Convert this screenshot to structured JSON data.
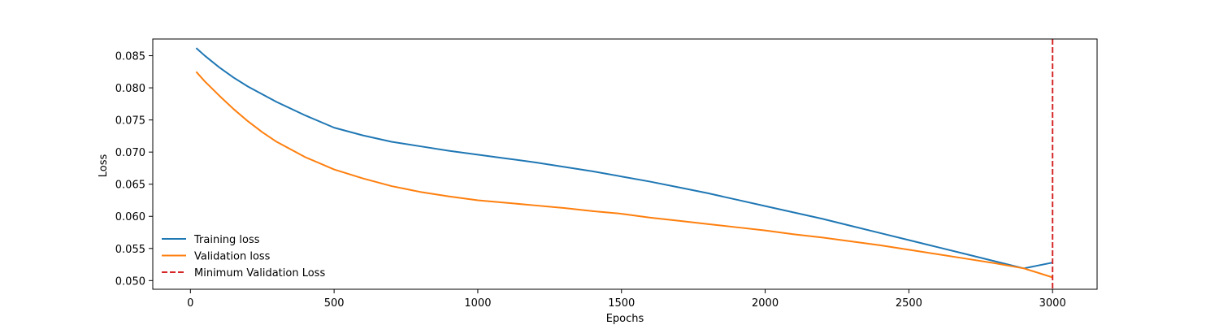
{
  "chart_data": {
    "type": "line",
    "title": "",
    "xlabel": "Epochs",
    "ylabel": "Loss",
    "xlim": [
      -131,
      3155
    ],
    "ylim": [
      0.04865,
      0.0876
    ],
    "xticks": [
      0,
      500,
      1000,
      1500,
      2000,
      2500,
      3000
    ],
    "xtick_labels": [
      "0",
      "500",
      "1000",
      "1500",
      "2000",
      "2500",
      "3000"
    ],
    "yticks": [
      0.05,
      0.055,
      0.06,
      0.065,
      0.07,
      0.075,
      0.08,
      0.085
    ],
    "ytick_labels": [
      "0.050",
      "0.055",
      "0.060",
      "0.065",
      "0.070",
      "0.075",
      "0.080",
      "0.085"
    ],
    "grid": false,
    "legend_position": "lower-left",
    "series": [
      {
        "name": "Training loss",
        "color": "#1f77b4",
        "style": "solid",
        "x": [
          20,
          50,
          100,
          150,
          200,
          250,
          300,
          400,
          500,
          600,
          700,
          800,
          900,
          1000,
          1100,
          1200,
          1300,
          1400,
          1500,
          1600,
          1700,
          1800,
          1900,
          2000,
          2100,
          2200,
          2300,
          2400,
          2500,
          2600,
          2700,
          2800,
          2900,
          3000
        ],
        "values": [
          0.0862,
          0.085,
          0.0832,
          0.0816,
          0.0802,
          0.079,
          0.0778,
          0.0757,
          0.0738,
          0.0726,
          0.0716,
          0.0709,
          0.0702,
          0.0696,
          0.069,
          0.0684,
          0.0677,
          0.067,
          0.0662,
          0.0654,
          0.0645,
          0.0636,
          0.0626,
          0.0616,
          0.0606,
          0.0596,
          0.0585,
          0.0574,
          0.0563,
          0.0552,
          0.0541,
          0.053,
          0.0519,
          0.0528
        ]
      },
      {
        "name": "Validation loss",
        "color": "#ff7f0e",
        "style": "solid",
        "x": [
          20,
          50,
          100,
          150,
          200,
          250,
          300,
          400,
          500,
          600,
          700,
          800,
          900,
          1000,
          1100,
          1200,
          1300,
          1400,
          1500,
          1600,
          1700,
          1800,
          1900,
          2000,
          2100,
          2200,
          2300,
          2400,
          2500,
          2600,
          2700,
          2800,
          2900,
          3000
        ],
        "values": [
          0.0825,
          0.081,
          0.0788,
          0.0767,
          0.0748,
          0.0731,
          0.0716,
          0.0692,
          0.0673,
          0.0659,
          0.0647,
          0.0638,
          0.0631,
          0.0625,
          0.0621,
          0.0617,
          0.0613,
          0.0608,
          0.0604,
          0.0598,
          0.0593,
          0.0588,
          0.0583,
          0.0578,
          0.0572,
          0.0567,
          0.0561,
          0.0555,
          0.0548,
          0.0541,
          0.0534,
          0.0527,
          0.0519,
          0.0505
        ]
      },
      {
        "name": "Minimum Validation Loss",
        "color": "#d62728",
        "style": "dashed",
        "type": "vline",
        "x": [
          3000
        ]
      }
    ]
  }
}
